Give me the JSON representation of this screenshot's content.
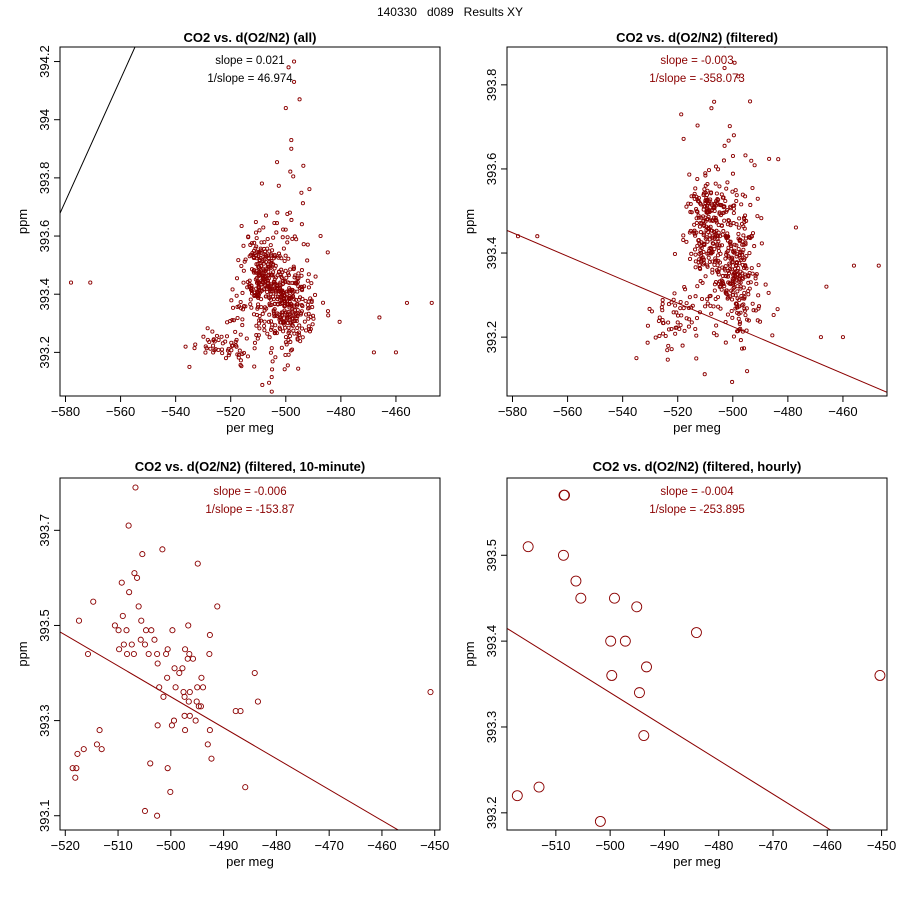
{
  "page": {
    "title": "140330   d089   Results XY"
  },
  "colors": {
    "accent": "#8b0000",
    "axis": "#000000",
    "background": "#ffffff"
  },
  "chart_data": [
    {
      "type": "scatter",
      "title": "CO2 vs. d(O2/N2) (all)",
      "xlabel": "per meg",
      "ylabel": "ppm",
      "xlim": [
        -582,
        -444
      ],
      "ylim": [
        393.05,
        394.25
      ],
      "xticks": [
        -580,
        -560,
        -540,
        -520,
        -500,
        -480,
        -460
      ],
      "yticks": [
        393.2,
        393.4,
        393.6,
        393.8,
        394.0,
        394.2
      ],
      "annotations": [
        "slope = 0.021",
        "1/slope = 46.974"
      ],
      "annotation_color": "#000000",
      "fit_line": {
        "slope": 0.021,
        "intercept": 405.9,
        "color": "#000000"
      },
      "cloud": {
        "marker_size": 1.6,
        "n": 650,
        "clusters": [
          {
            "cx": -509,
            "cy": 393.47,
            "sx": 3.5,
            "sy": 0.06,
            "w": 0.33
          },
          {
            "cx": -499,
            "cy": 393.36,
            "sx": 4,
            "sy": 0.07,
            "w": 0.36
          },
          {
            "cx": -521,
            "cy": 393.23,
            "sx": 5,
            "sy": 0.04,
            "w": 0.09
          },
          {
            "cx": -503,
            "cy": 393.4,
            "sx": 7,
            "sy": 0.18,
            "w": 0.22
          }
        ],
        "extras": [
          [
            -578,
            393.44
          ],
          [
            -571,
            393.44
          ],
          [
            -456,
            393.37
          ],
          [
            -447,
            393.37
          ],
          [
            -466,
            393.32
          ],
          [
            -460,
            393.2
          ],
          [
            -468,
            393.2
          ],
          [
            -535,
            393.15
          ],
          [
            -498,
            393.93
          ],
          [
            -498,
            393.9
          ],
          [
            -495,
            394.07
          ],
          [
            -497,
            394.2
          ],
          [
            -499,
            394.18
          ],
          [
            -497,
            394.13
          ],
          [
            -500,
            394.04
          ]
        ]
      }
    },
    {
      "type": "scatter",
      "title": "CO2 vs. d(O2/N2) (filtered)",
      "xlabel": "per meg",
      "ylabel": "ppm",
      "xlim": [
        -582,
        -444
      ],
      "ylim": [
        393.06,
        393.89
      ],
      "xticks": [
        -580,
        -560,
        -540,
        -520,
        -500,
        -480,
        -460
      ],
      "yticks": [
        393.2,
        393.4,
        393.6,
        393.8
      ],
      "annotations": [
        "slope = -0.003",
        "1/slope = -358.073"
      ],
      "annotation_color": "#8b0000",
      "fit_line": {
        "slope": -0.00279,
        "intercept": 391.83,
        "color": "#8b0000"
      },
      "cloud": {
        "marker_size": 1.6,
        "n": 630,
        "clusters": [
          {
            "cx": -509,
            "cy": 393.47,
            "sx": 3.5,
            "sy": 0.06,
            "w": 0.33
          },
          {
            "cx": -499,
            "cy": 393.36,
            "sx": 4,
            "sy": 0.07,
            "w": 0.36
          },
          {
            "cx": -521,
            "cy": 393.23,
            "sx": 5,
            "sy": 0.04,
            "w": 0.09
          },
          {
            "cx": -503,
            "cy": 393.4,
            "sx": 7,
            "sy": 0.16,
            "w": 0.22
          }
        ],
        "extras": [
          [
            -578,
            393.44
          ],
          [
            -571,
            393.44
          ],
          [
            -456,
            393.37
          ],
          [
            -447,
            393.37
          ],
          [
            -466,
            393.32
          ],
          [
            -460,
            393.2
          ],
          [
            -468,
            393.2
          ],
          [
            -535,
            393.15
          ],
          [
            -503,
            393.84
          ],
          [
            -498,
            393.82
          ]
        ]
      }
    },
    {
      "type": "scatter",
      "title": "CO2 vs. d(O2/N2) (filtered, 10-minute)",
      "xlabel": "per meg",
      "ylabel": "ppm",
      "xlim": [
        -521,
        -449
      ],
      "ylim": [
        393.07,
        393.81
      ],
      "xticks": [
        -520,
        -510,
        -500,
        -490,
        -480,
        -470,
        -460,
        -450
      ],
      "yticks": [
        393.1,
        393.3,
        393.5,
        393.7
      ],
      "annotations": [
        "slope = -0.006",
        "1/slope = -153.87"
      ],
      "annotation_color": "#8b0000",
      "fit_line": {
        "slope": -0.0065,
        "intercept": 390.1,
        "color": "#8b0000"
      },
      "marker_size": 2.6,
      "points": [
        [
          -506.7,
          393.79
        ],
        [
          -508,
          393.71
        ],
        [
          -501.6,
          393.66
        ],
        [
          -505.4,
          393.65
        ],
        [
          -494.9,
          393.63
        ],
        [
          -506.9,
          393.61
        ],
        [
          -506.4,
          393.6
        ],
        [
          -509.3,
          393.59
        ],
        [
          -507.9,
          393.57
        ],
        [
          -514.7,
          393.55
        ],
        [
          -506.1,
          393.54
        ],
        [
          -491.2,
          393.54
        ],
        [
          -509.1,
          393.52
        ],
        [
          -517.4,
          393.51
        ],
        [
          -505.6,
          393.51
        ],
        [
          -510.6,
          393.5
        ],
        [
          -509.9,
          393.49
        ],
        [
          -508.4,
          393.49
        ],
        [
          -504.7,
          393.49
        ],
        [
          -503.7,
          393.49
        ],
        [
          -499.7,
          393.49
        ],
        [
          -496.7,
          393.5
        ],
        [
          -505.7,
          393.47
        ],
        [
          -492.6,
          393.48
        ],
        [
          -508.9,
          393.46
        ],
        [
          -507.4,
          393.46
        ],
        [
          -504.9,
          393.46
        ],
        [
          -503.1,
          393.47
        ],
        [
          -509.8,
          393.45
        ],
        [
          -500.6,
          393.45
        ],
        [
          -515.7,
          393.44
        ],
        [
          -508.3,
          393.44
        ],
        [
          -507,
          393.44
        ],
        [
          -504.2,
          393.44
        ],
        [
          -502.6,
          393.44
        ],
        [
          -500.9,
          393.44
        ],
        [
          -497.3,
          393.45
        ],
        [
          -496.5,
          393.44
        ],
        [
          -492.7,
          393.44
        ],
        [
          -502.5,
          393.42
        ],
        [
          -499.3,
          393.41
        ],
        [
          -496.8,
          393.43
        ],
        [
          -495.8,
          393.43
        ],
        [
          -498.4,
          393.4
        ],
        [
          -497.8,
          393.41
        ],
        [
          -484.1,
          393.4
        ],
        [
          -500.7,
          393.39
        ],
        [
          -494.2,
          393.39
        ],
        [
          -502.2,
          393.37
        ],
        [
          -499.1,
          393.37
        ],
        [
          -495,
          393.37
        ],
        [
          -497.6,
          393.36
        ],
        [
          -496.4,
          393.36
        ],
        [
          -493.9,
          393.37
        ],
        [
          -501.4,
          393.35
        ],
        [
          -497.4,
          393.35
        ],
        [
          -496.6,
          393.34
        ],
        [
          -495.1,
          393.34
        ],
        [
          -483.5,
          393.34
        ],
        [
          -494.7,
          393.33
        ],
        [
          -494.3,
          393.33
        ],
        [
          -487.7,
          393.32
        ],
        [
          -486.8,
          393.32
        ],
        [
          -496.4,
          393.31
        ],
        [
          -497.4,
          393.31
        ],
        [
          -499.4,
          393.3
        ],
        [
          -495.3,
          393.3
        ],
        [
          -450.8,
          393.36
        ],
        [
          -502.5,
          393.29
        ],
        [
          -499.8,
          393.29
        ],
        [
          -497.3,
          393.28
        ],
        [
          -492.6,
          393.28
        ],
        [
          -513.5,
          393.28
        ],
        [
          -514,
          393.25
        ],
        [
          -493,
          393.25
        ],
        [
          -516.5,
          393.24
        ],
        [
          -513.1,
          393.24
        ],
        [
          -517.7,
          393.23
        ],
        [
          -492.3,
          393.22
        ],
        [
          -503.9,
          393.21
        ],
        [
          -518.6,
          393.2
        ],
        [
          -517.9,
          393.2
        ],
        [
          -500.6,
          393.2
        ],
        [
          -518.1,
          393.18
        ],
        [
          -485.9,
          393.16
        ],
        [
          -500.1,
          393.15
        ],
        [
          -504.9,
          393.11
        ],
        [
          -502.6,
          393.1
        ]
      ]
    },
    {
      "type": "scatter",
      "title": "CO2 vs. d(O2/N2) (filtered, hourly)",
      "xlabel": "per meg",
      "ylabel": "ppm",
      "xlim": [
        -519,
        -449
      ],
      "ylim": [
        393.18,
        393.59
      ],
      "xticks": [
        -510,
        -500,
        -490,
        -480,
        -470,
        -460,
        -450
      ],
      "yticks": [
        393.2,
        393.3,
        393.4,
        393.5
      ],
      "annotations": [
        "slope = -0.004",
        "1/slope = -253.895"
      ],
      "annotation_color": "#8b0000",
      "fit_line": {
        "slope": -0.00394,
        "intercept": 391.37,
        "color": "#8b0000"
      },
      "marker_size": 5,
      "points": [
        [
          -508.5,
          393.57
        ],
        [
          -508.4,
          393.57
        ],
        [
          -515.1,
          393.51
        ],
        [
          -508.6,
          393.5
        ],
        [
          -506.3,
          393.47
        ],
        [
          -505.4,
          393.45
        ],
        [
          -499.2,
          393.45
        ],
        [
          -495.1,
          393.44
        ],
        [
          -499.9,
          393.4
        ],
        [
          -497.2,
          393.4
        ],
        [
          -484.1,
          393.41
        ],
        [
          -493.3,
          393.37
        ],
        [
          -450.3,
          393.36
        ],
        [
          -499.7,
          393.36
        ],
        [
          -494.6,
          393.34
        ],
        [
          -493.8,
          393.29
        ],
        [
          -513.1,
          393.23
        ],
        [
          -517.1,
          393.22
        ],
        [
          -501.8,
          393.19
        ]
      ]
    }
  ]
}
